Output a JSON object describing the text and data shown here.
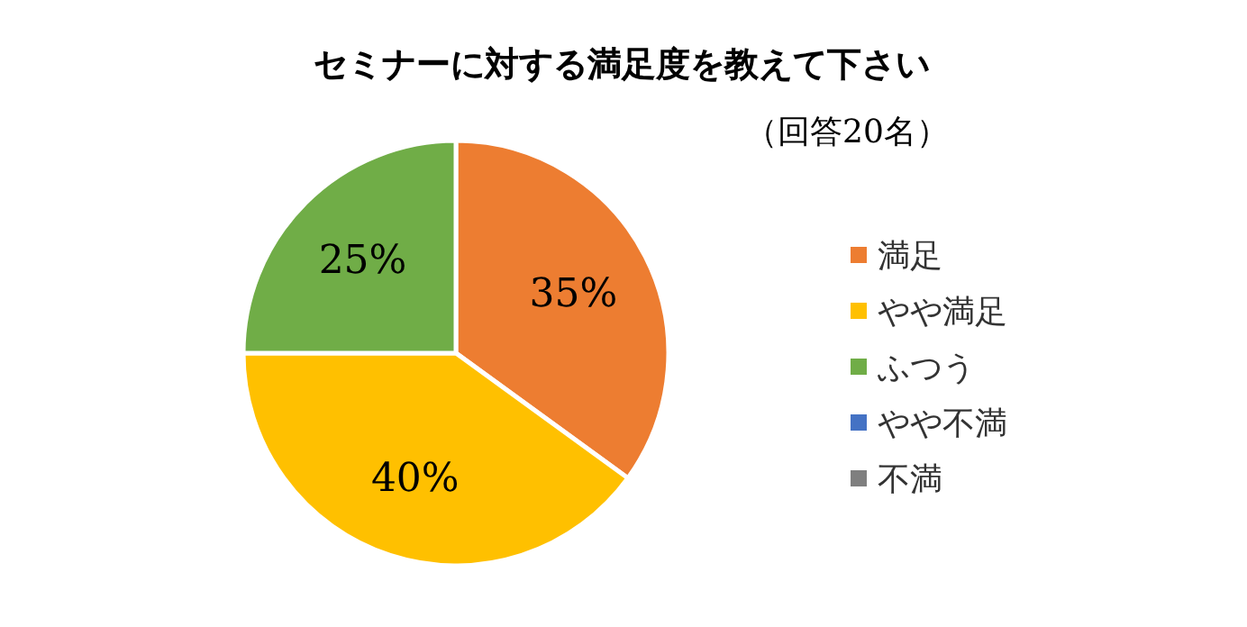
{
  "chart_data": {
    "type": "pie",
    "title": "セミナーに対する満足度を教えて下さい",
    "subtitle": "（回答20名）",
    "categories": [
      "満足",
      "やや満足",
      "ふつう",
      "やや不満",
      "不満"
    ],
    "values": [
      35,
      40,
      25,
      0,
      0
    ],
    "colors": [
      "#ed7d31",
      "#ffc000",
      "#70ad47",
      "#4472c4",
      "#7f7f7f"
    ],
    "value_labels": [
      "35%",
      "40%",
      "25%",
      null,
      null
    ],
    "legend": "right"
  }
}
